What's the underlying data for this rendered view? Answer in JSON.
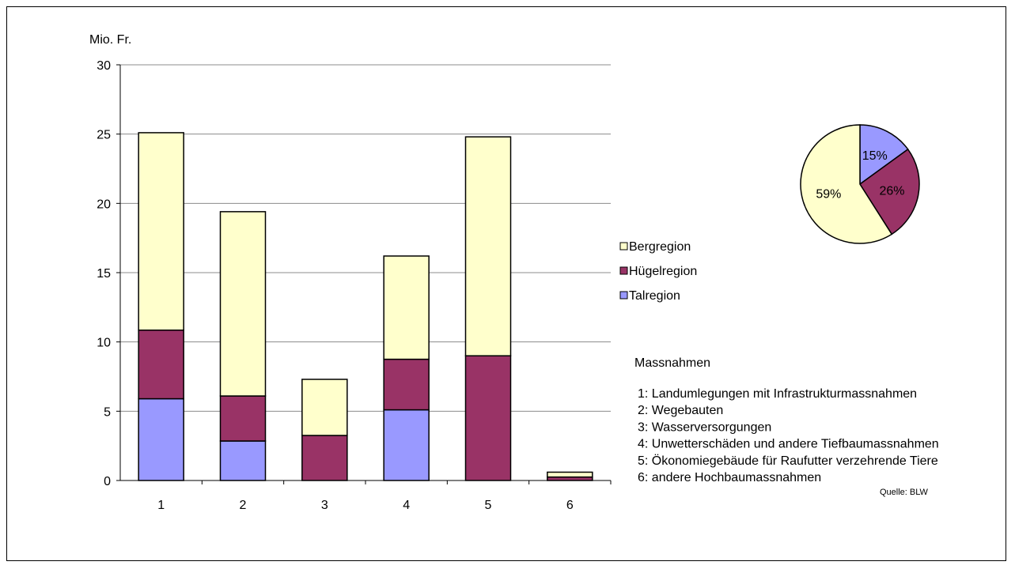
{
  "chart_data": [
    {
      "type": "bar",
      "stacked": true,
      "ylabel": "Mio. Fr.",
      "ylim": [
        0,
        30
      ],
      "yticks": [
        "0",
        "5",
        "10",
        "15",
        "20",
        "25",
        "30"
      ],
      "grid": true,
      "categories": [
        "1",
        "2",
        "3",
        "4",
        "5",
        "6"
      ],
      "series": [
        {
          "name": "Talregion",
          "color": "#9999ff",
          "values": [
            5.9,
            2.85,
            0,
            5.1,
            0,
            0
          ]
        },
        {
          "name": "Hügelregion",
          "color": "#993366",
          "values": [
            4.95,
            3.25,
            3.25,
            3.65,
            9.0,
            0.25
          ]
        },
        {
          "name": "Bergregion",
          "color": "#ffffcc",
          "values": [
            14.25,
            13.3,
            4.05,
            7.45,
            15.8,
            0.35
          ]
        }
      ],
      "legend": {
        "placement": "right",
        "entries": [
          "Bergregion",
          "Hügelregion",
          "Talregion"
        ]
      }
    },
    {
      "type": "pie",
      "slices": [
        {
          "name": "Talregion",
          "value": 15,
          "label": "15%",
          "color": "#9999ff"
        },
        {
          "name": "Hügelregion",
          "value": 26,
          "label": "26%",
          "color": "#993366"
        },
        {
          "name": "Bergregion",
          "value": 59,
          "label": "59%",
          "color": "#ffffcc"
        }
      ]
    }
  ],
  "notes": {
    "title": "Massnahmen",
    "items": [
      "1: Landumlegungen mit Infrastrukturmassnahmen",
      "2: Wegebauten",
      "3: Wasserversorgungen",
      "4: Unwetterschäden und andere Tiefbaumassnahmen",
      "5: Ökonomiegebäude für Raufutter verzehrende Tiere",
      "6: andere Hochbaumassnahmen"
    ],
    "source": "Quelle: BLW"
  }
}
